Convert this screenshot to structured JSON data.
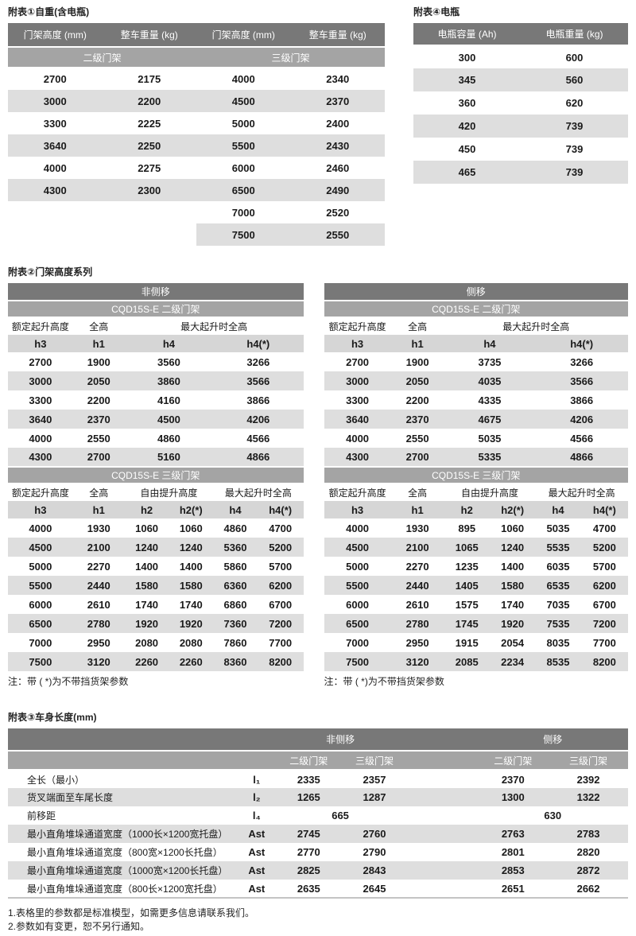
{
  "table1": {
    "title": "附表①自重(含电瓶)",
    "col_headers": [
      "门架高度 (mm)",
      "整车重量 (kg)",
      "门架高度 (mm)",
      "整车重量 (kg)"
    ],
    "group_headers": [
      "二级门架",
      "三级门架"
    ],
    "rows": [
      [
        "2700",
        "2175",
        "4000",
        "2340"
      ],
      [
        "3000",
        "2200",
        "4500",
        "2370"
      ],
      [
        "3300",
        "2225",
        "5000",
        "2400"
      ],
      [
        "3640",
        "2250",
        "5500",
        "2430"
      ],
      [
        "4000",
        "2275",
        "6000",
        "2460"
      ],
      [
        "4300",
        "2300",
        "6500",
        "2490"
      ],
      [
        {
          "t": "",
          "cls": "blank"
        },
        {
          "t": "",
          "cls": "blank"
        },
        "7000",
        "2520"
      ],
      [
        {
          "t": "",
          "cls": "blank"
        },
        {
          "t": "",
          "cls": "blank"
        },
        "7500",
        "2550"
      ]
    ]
  },
  "table4": {
    "title": "附表④电瓶",
    "col_headers": [
      "电瓶容量 (Ah)",
      "电瓶重量 (kg)"
    ],
    "rows": [
      [
        "300",
        "600"
      ],
      [
        "345",
        "560"
      ],
      [
        "360",
        "620"
      ],
      [
        "420",
        "739"
      ],
      [
        "450",
        "739"
      ],
      [
        "465",
        "739"
      ]
    ]
  },
  "table2": {
    "title": "附表②门架高度系列",
    "variants": [
      {
        "name": "非侧移",
        "two_stage": {
          "model": "CQD15S-E 二级门架",
          "headers": [
            "额定起升高度",
            "全高",
            "最大起升时全高"
          ],
          "sub": [
            "h3",
            "h1",
            "h4",
            "h4(*)"
          ],
          "rows": [
            [
              "2700",
              "1900",
              {
                "t": "3560",
                "span": 2
              },
              {
                "t": "3266",
                "span": 2
              }
            ],
            [
              "3000",
              "2050",
              {
                "t": "3860",
                "span": 2
              },
              {
                "t": "3566",
                "span": 2
              }
            ],
            [
              "3300",
              "2200",
              {
                "t": "4160",
                "span": 2
              },
              {
                "t": "3866",
                "span": 2
              }
            ],
            [
              "3640",
              "2370",
              {
                "t": "4500",
                "span": 2
              },
              {
                "t": "4206",
                "span": 2
              }
            ],
            [
              "4000",
              "2550",
              {
                "t": "4860",
                "span": 2
              },
              {
                "t": "4566",
                "span": 2
              }
            ],
            [
              "4300",
              "2700",
              {
                "t": "5160",
                "span": 2
              },
              {
                "t": "4866",
                "span": 2
              }
            ]
          ]
        },
        "three_stage": {
          "model": "CQD15S-E 三级门架",
          "headers": [
            "额定起升高度",
            "全高",
            "自由提升高度",
            "最大起升时全高"
          ],
          "sub": [
            "h3",
            "h1",
            "h2",
            "h2(*)",
            "h4",
            "h4(*)"
          ],
          "rows": [
            [
              "4000",
              "1930",
              "1060",
              "1060",
              "4860",
              "4700"
            ],
            [
              "4500",
              "2100",
              "1240",
              "1240",
              "5360",
              "5200"
            ],
            [
              "5000",
              "2270",
              "1400",
              "1400",
              "5860",
              "5700"
            ],
            [
              "5500",
              "2440",
              "1580",
              "1580",
              "6360",
              "6200"
            ],
            [
              "6000",
              "2610",
              "1740",
              "1740",
              "6860",
              "6700"
            ],
            [
              "6500",
              "2780",
              "1920",
              "1920",
              "7360",
              "7200"
            ],
            [
              "7000",
              "2950",
              "2080",
              "2080",
              "7860",
              "7700"
            ],
            [
              "7500",
              "3120",
              "2260",
              "2260",
              "8360",
              "8200"
            ]
          ]
        },
        "note": "注：带 ( *)为不带挡货架参数"
      },
      {
        "name": "侧移",
        "two_stage": {
          "model": "CQD15S-E 二级门架",
          "headers": [
            "额定起升高度",
            "全高",
            "最大起升时全高"
          ],
          "sub": [
            "h3",
            "h1",
            "h4",
            "h4(*)"
          ],
          "rows": [
            [
              "2700",
              "1900",
              {
                "t": "3735",
                "span": 2
              },
              {
                "t": "3266",
                "span": 2
              }
            ],
            [
              "3000",
              "2050",
              {
                "t": "4035",
                "span": 2
              },
              {
                "t": "3566",
                "span": 2
              }
            ],
            [
              "3300",
              "2200",
              {
                "t": "4335",
                "span": 2
              },
              {
                "t": "3866",
                "span": 2
              }
            ],
            [
              "3640",
              "2370",
              {
                "t": "4675",
                "span": 2
              },
              {
                "t": "4206",
                "span": 2
              }
            ],
            [
              "4000",
              "2550",
              {
                "t": "5035",
                "span": 2
              },
              {
                "t": "4566",
                "span": 2
              }
            ],
            [
              "4300",
              "2700",
              {
                "t": "5335",
                "span": 2
              },
              {
                "t": "4866",
                "span": 2
              }
            ]
          ]
        },
        "three_stage": {
          "model": "CQD15S-E 三级门架",
          "headers": [
            "额定起升高度",
            "全高",
            "自由提升高度",
            "最大起升时全高"
          ],
          "sub": [
            "h3",
            "h1",
            "h2",
            "h2(*)",
            "h4",
            "h4(*)"
          ],
          "rows": [
            [
              "4000",
              "1930",
              "895",
              "1060",
              "5035",
              "4700"
            ],
            [
              "4500",
              "2100",
              "1065",
              "1240",
              "5535",
              "5200"
            ],
            [
              "5000",
              "2270",
              "1235",
              "1400",
              "6035",
              "5700"
            ],
            [
              "5500",
              "2440",
              "1405",
              "1580",
              "6535",
              "6200"
            ],
            [
              "6000",
              "2610",
              "1575",
              "1740",
              "7035",
              "6700"
            ],
            [
              "6500",
              "2780",
              "1745",
              "1920",
              "7535",
              "7200"
            ],
            [
              "7000",
              "2950",
              "1915",
              "2054",
              "8035",
              "7700"
            ],
            [
              "7500",
              "3120",
              "2085",
              "2234",
              "8535",
              "8200"
            ]
          ]
        },
        "note": "注：带 ( *)为不带挡货架参数"
      }
    ]
  },
  "table3": {
    "title": "附表③车身长度(mm)",
    "group_headers": [
      "非侧移",
      "侧移"
    ],
    "sub_headers": [
      "二级门架",
      "三级门架",
      "二级门架",
      "三级门架"
    ],
    "rows": [
      [
        {
          "t": "全长（最小）",
          "cls": "lbl"
        },
        {
          "t": "l₁",
          "cls": "sym"
        },
        "2335",
        "2357",
        "",
        "2370",
        "2392"
      ],
      [
        {
          "t": "货叉端面至车尾长度",
          "cls": "lbl"
        },
        {
          "t": "l₂",
          "cls": "sym"
        },
        "1265",
        "1287",
        "",
        "1300",
        "1322"
      ],
      [
        {
          "t": "前移距",
          "cls": "lbl"
        },
        {
          "t": "l₄",
          "cls": "sym"
        },
        {
          "t": "665",
          "span": 2
        },
        "",
        {
          "t": "630",
          "span": 2
        }
      ],
      [
        {
          "t": "最小直角堆垛通道宽度（1000长×1200宽托盘）",
          "cls": "lbl"
        },
        {
          "t": "Ast",
          "cls": "sym"
        },
        "2745",
        "2760",
        "",
        "2763",
        "2783"
      ],
      [
        {
          "t": "最小直角堆垛通道宽度（800宽×1200长托盘）",
          "cls": "lbl"
        },
        {
          "t": "Ast",
          "cls": "sym"
        },
        "2770",
        "2790",
        "",
        "2801",
        "2820"
      ],
      [
        {
          "t": "最小直角堆垛通道宽度（1000宽×1200长托盘）",
          "cls": "lbl"
        },
        {
          "t": "Ast",
          "cls": "sym"
        },
        "2825",
        "2843",
        "",
        "2853",
        "2872"
      ],
      [
        {
          "t": "最小直角堆垛通道宽度（800长×1200宽托盘）",
          "cls": "lbl"
        },
        {
          "t": "Ast",
          "cls": "sym"
        },
        "2635",
        "2645",
        "",
        "2651",
        "2662"
      ]
    ]
  },
  "footer": {
    "line1": "1.表格里的参数都是标准模型，如需更多信息请联系我们。",
    "line2": "2.参数如有变更，恕不另行通知。"
  }
}
